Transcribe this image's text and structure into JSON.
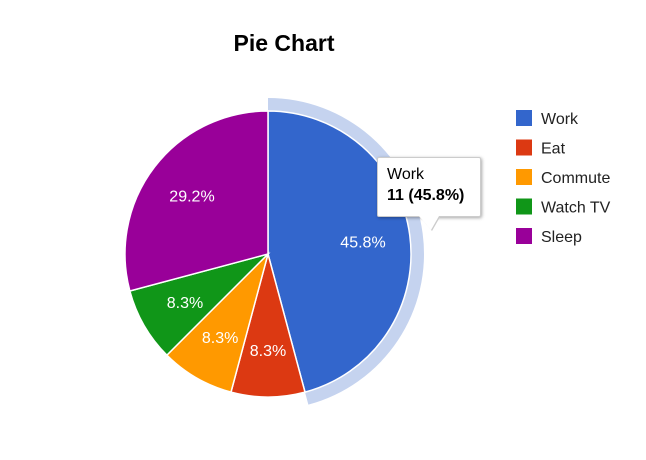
{
  "chart_data": {
    "type": "pie",
    "title": "Pie Chart",
    "slices": [
      {
        "name": "Work",
        "value": 11,
        "percent_label": "45.8%",
        "color": "#3366cc"
      },
      {
        "name": "Eat",
        "value": 2,
        "percent_label": "8.3%",
        "color": "#dc3912"
      },
      {
        "name": "Commute",
        "value": 2,
        "percent_label": "8.3%",
        "color": "#ff9900"
      },
      {
        "name": "Watch TV",
        "value": 2,
        "percent_label": "8.3%",
        "color": "#109618"
      },
      {
        "name": "Sleep",
        "value": 7,
        "percent_label": "29.2%",
        "color": "#990099"
      }
    ],
    "highlighted_slice": "Work",
    "highlight_color": "#c5d3ef",
    "legend_position": "right"
  },
  "tooltip": {
    "name": "Work",
    "value": "11 (45.8%)"
  }
}
